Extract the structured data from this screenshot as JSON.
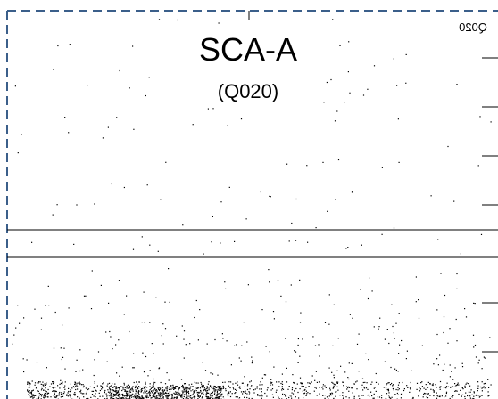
{
  "plot": {
    "title": "SCA-A",
    "subtitle": "(Q020)",
    "mirrored_label": "Q020"
  }
}
